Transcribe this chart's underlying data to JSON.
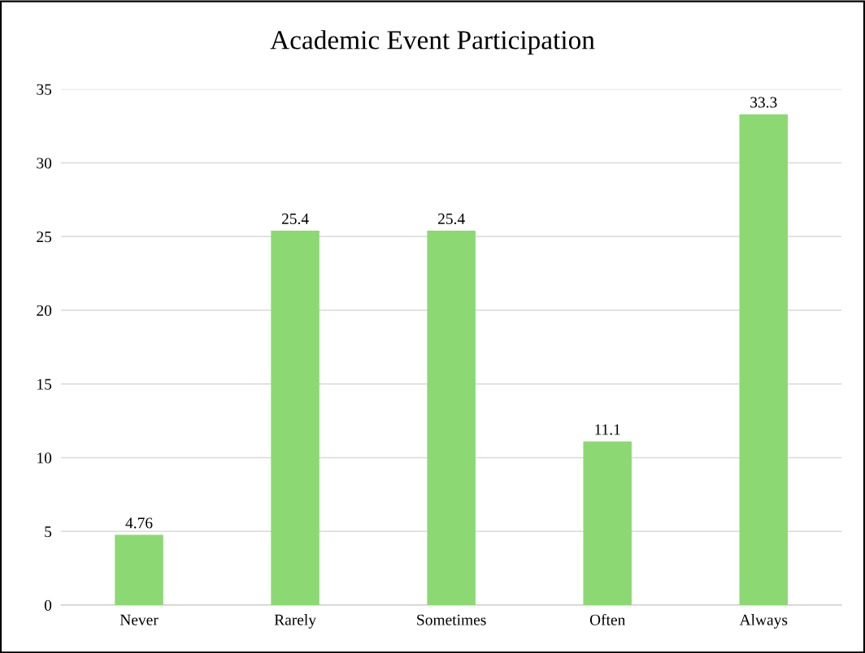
{
  "chart_data": {
    "type": "bar",
    "title": "Academic Event Participation",
    "categories": [
      "Never",
      "Rarely",
      "Sometimes",
      "Often",
      "Always"
    ],
    "values": [
      4.76,
      25.4,
      25.4,
      11.1,
      33.3
    ],
    "color": "#8cd973",
    "ylim": [
      0,
      35
    ],
    "yticks": [
      0,
      5,
      10,
      15,
      20,
      25,
      30,
      35
    ],
    "grid": "y",
    "data_labels": true,
    "legend": false
  }
}
